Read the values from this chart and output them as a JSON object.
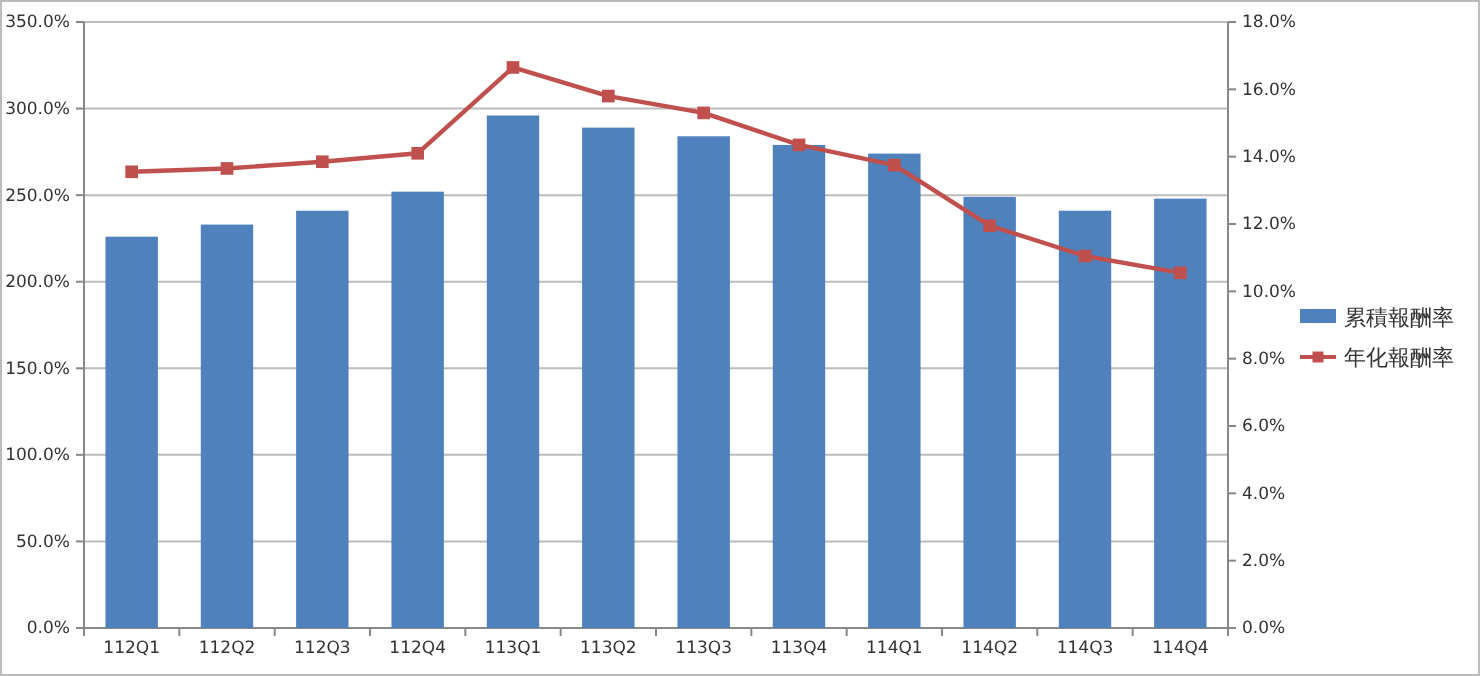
{
  "chart_data": {
    "type": "bar",
    "categories": [
      "112Q1",
      "112Q2",
      "112Q3",
      "112Q4",
      "113Q1",
      "113Q2",
      "113Q3",
      "113Q4",
      "114Q1",
      "114Q2",
      "114Q3",
      "114Q4"
    ],
    "series": [
      {
        "name": "累積報酬率",
        "color": "#4f81bd",
        "values": [
          226,
          233,
          241,
          252,
          296,
          289,
          284,
          279,
          274,
          249,
          241,
          248
        ]
      },
      {
        "name": "年化報酬率",
        "type": "line",
        "axis": "y2",
        "color": "#c0504d",
        "values": [
          13.55,
          13.65,
          13.85,
          14.1,
          16.65,
          15.8,
          15.3,
          14.35,
          13.75,
          11.95,
          11.05,
          10.55
        ]
      }
    ],
    "ylim": [
      0,
      350
    ],
    "yticks": [
      {
        "value": 0,
        "label": "0.0%"
      },
      {
        "value": 50,
        "label": "50.0%"
      },
      {
        "value": 100,
        "label": "100.0%"
      },
      {
        "value": 150,
        "label": "150.0%"
      },
      {
        "value": 200,
        "label": "200.0%"
      },
      {
        "value": 250,
        "label": "250.0%"
      },
      {
        "value": 300,
        "label": "300.0%"
      },
      {
        "value": 350,
        "label": "350.0%"
      }
    ],
    "y2lim": [
      0,
      18
    ],
    "y2ticks": [
      {
        "value": 0,
        "label": "0.0%"
      },
      {
        "value": 2,
        "label": "2.0%"
      },
      {
        "value": 4,
        "label": "4.0%"
      },
      {
        "value": 6,
        "label": "6.0%"
      },
      {
        "value": 8,
        "label": "8.0%"
      },
      {
        "value": 10,
        "label": "10.0%"
      },
      {
        "value": 12,
        "label": "12.0%"
      },
      {
        "value": 14,
        "label": "14.0%"
      },
      {
        "value": 16,
        "label": "16.0%"
      },
      {
        "value": 18,
        "label": "18.0%"
      }
    ],
    "grid": "y",
    "legend": "right",
    "marker": "square",
    "line_style": "solid"
  }
}
